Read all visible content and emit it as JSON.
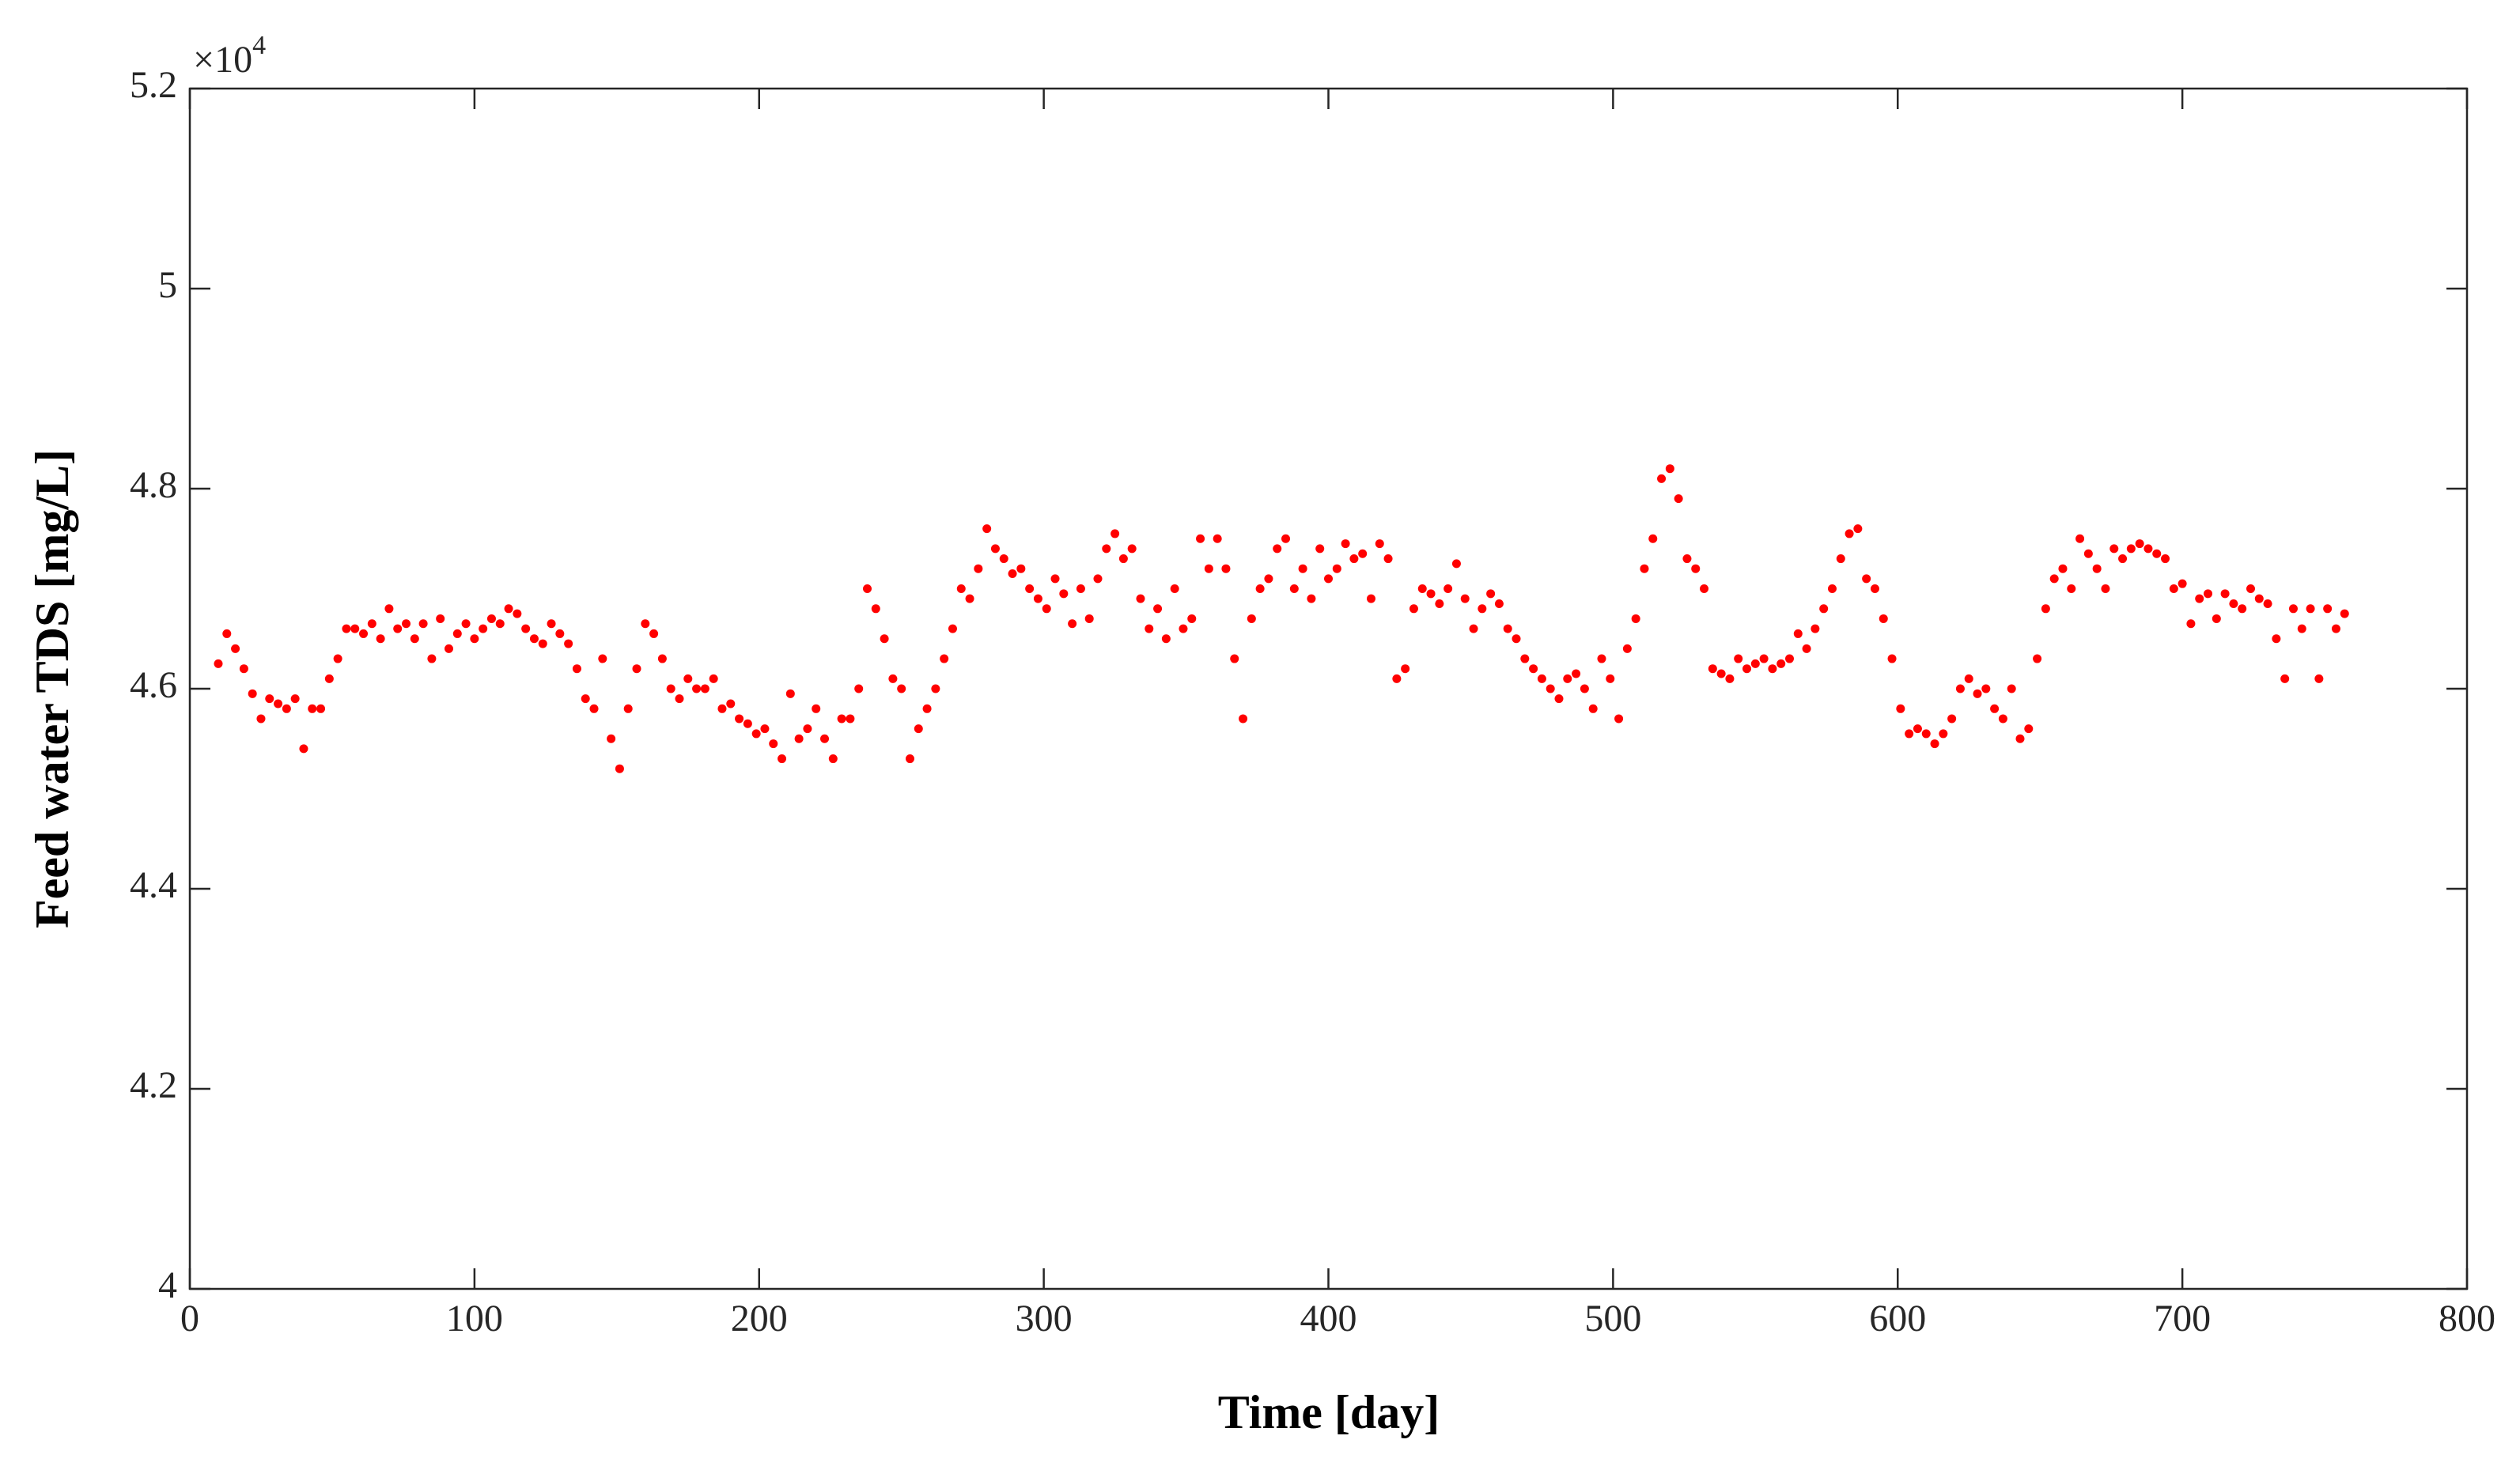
{
  "chart_data": {
    "type": "scatter",
    "x_label": "Time [day]",
    "y_label": "Feed water TDS [mg/L]",
    "y_scale_base": "×10",
    "y_scale_exponent": "4",
    "xlim": [
      0,
      800
    ],
    "xticks": [
      0,
      100,
      200,
      300,
      400,
      500,
      600,
      700,
      800
    ],
    "ylim": [
      4,
      5.2
    ],
    "yticks": [
      4,
      4.2,
      4.4,
      4.6,
      4.8,
      5,
      5.2
    ],
    "grid": false,
    "color": "#ff0000",
    "x": [
      10,
      13,
      16,
      19,
      22,
      25,
      28,
      31,
      34,
      37,
      40,
      43,
      46,
      49,
      52,
      55,
      58,
      61,
      64,
      67,
      70,
      73,
      76,
      79,
      82,
      85,
      88,
      91,
      94,
      97,
      100,
      103,
      106,
      109,
      112,
      115,
      118,
      121,
      124,
      127,
      130,
      133,
      136,
      139,
      142,
      145,
      148,
      151,
      154,
      157,
      160,
      163,
      166,
      169,
      172,
      175,
      178,
      181,
      184,
      187,
      190,
      193,
      196,
      199,
      202,
      205,
      208,
      211,
      214,
      217,
      220,
      223,
      226,
      229,
      232,
      235,
      238,
      241,
      244,
      247,
      250,
      253,
      256,
      259,
      262,
      265,
      268,
      271,
      274,
      277,
      280,
      283,
      286,
      289,
      292,
      295,
      298,
      301,
      304,
      307,
      310,
      313,
      316,
      319,
      322,
      325,
      328,
      331,
      334,
      337,
      340,
      343,
      346,
      349,
      352,
      355,
      358,
      361,
      364,
      367,
      370,
      373,
      376,
      379,
      382,
      385,
      388,
      391,
      394,
      397,
      400,
      403,
      406,
      409,
      412,
      415,
      418,
      421,
      424,
      427,
      430,
      433,
      436,
      439,
      442,
      445,
      448,
      451,
      454,
      457,
      460,
      463,
      466,
      469,
      472,
      475,
      478,
      481,
      484,
      487,
      490,
      493,
      496,
      499,
      502,
      505,
      508,
      511,
      514,
      517,
      520,
      523,
      526,
      529,
      532,
      535,
      538,
      541,
      544,
      547,
      550,
      553,
      556,
      559,
      562,
      565,
      568,
      571,
      574,
      577,
      580,
      583,
      586,
      589,
      592,
      595,
      598,
      601,
      604,
      607,
      610,
      613,
      616,
      619,
      622,
      625,
      628,
      631,
      634,
      637,
      640,
      643,
      646,
      649,
      652,
      655,
      658,
      661,
      664,
      667,
      670,
      673,
      676,
      679,
      682,
      685,
      688,
      691,
      694,
      697,
      700,
      703,
      706,
      709,
      712,
      715,
      718,
      721,
      724,
      727,
      730,
      733,
      736,
      739,
      742,
      745,
      748,
      751,
      754,
      757
    ],
    "values": [
      4.625,
      4.655,
      4.64,
      4.62,
      4.595,
      4.57,
      4.59,
      4.585,
      4.58,
      4.59,
      4.54,
      4.58,
      4.58,
      4.61,
      4.63,
      4.66,
      4.66,
      4.655,
      4.665,
      4.65,
      4.68,
      4.66,
      4.665,
      4.65,
      4.665,
      4.63,
      4.67,
      4.64,
      4.655,
      4.665,
      4.65,
      4.66,
      4.67,
      4.665,
      4.68,
      4.675,
      4.66,
      4.65,
      4.645,
      4.665,
      4.655,
      4.645,
      4.62,
      4.59,
      4.58,
      4.63,
      4.55,
      4.52,
      4.58,
      4.62,
      4.665,
      4.655,
      4.63,
      4.6,
      4.59,
      4.61,
      4.6,
      4.6,
      4.61,
      4.58,
      4.585,
      4.57,
      4.565,
      4.555,
      4.56,
      4.545,
      4.53,
      4.595,
      4.55,
      4.56,
      4.58,
      4.55,
      4.53,
      4.57,
      4.57,
      4.6,
      4.7,
      4.68,
      4.65,
      4.61,
      4.6,
      4.53,
      4.56,
      4.58,
      4.6,
      4.63,
      4.66,
      4.7,
      4.69,
      4.72,
      4.76,
      4.74,
      4.73,
      4.715,
      4.72,
      4.7,
      4.69,
      4.68,
      4.71,
      4.695,
      4.665,
      4.7,
      4.67,
      4.71,
      4.74,
      4.755,
      4.73,
      4.74,
      4.69,
      4.66,
      4.68,
      4.65,
      4.7,
      4.66,
      4.67,
      4.75,
      4.72,
      4.75,
      4.72,
      4.63,
      4.57,
      4.67,
      4.7,
      4.71,
      4.74,
      4.75,
      4.7,
      4.72,
      4.69,
      4.74,
      4.71,
      4.72,
      4.745,
      4.73,
      4.735,
      4.69,
      4.745,
      4.73,
      4.61,
      4.62,
      4.68,
      4.7,
      4.695,
      4.685,
      4.7,
      4.725,
      4.69,
      4.66,
      4.68,
      4.695,
      4.685,
      4.66,
      4.65,
      4.63,
      4.62,
      4.61,
      4.6,
      4.59,
      4.61,
      4.615,
      4.6,
      4.58,
      4.63,
      4.61,
      4.57,
      4.64,
      4.67,
      4.72,
      4.75,
      4.81,
      4.82,
      4.79,
      4.73,
      4.72,
      4.7,
      4.62,
      4.615,
      4.61,
      4.63,
      4.62,
      4.625,
      4.63,
      4.62,
      4.625,
      4.63,
      4.655,
      4.64,
      4.66,
      4.68,
      4.7,
      4.73,
      4.755,
      4.76,
      4.71,
      4.7,
      4.67,
      4.63,
      4.58,
      4.555,
      4.56,
      4.555,
      4.545,
      4.555,
      4.57,
      4.6,
      4.61,
      4.595,
      4.6,
      4.58,
      4.57,
      4.6,
      4.55,
      4.56,
      4.63,
      4.68,
      4.71,
      4.72,
      4.7,
      4.75,
      4.735,
      4.72,
      4.7,
      4.74,
      4.73,
      4.74,
      4.745,
      4.74,
      4.735,
      4.73,
      4.7,
      4.705,
      4.665,
      4.69,
      4.695,
      4.67,
      4.695,
      4.685,
      4.68,
      4.7,
      4.69,
      4.685,
      4.65,
      4.61,
      4.68,
      4.66,
      4.68,
      4.61,
      4.68,
      4.66,
      4.675
    ]
  }
}
